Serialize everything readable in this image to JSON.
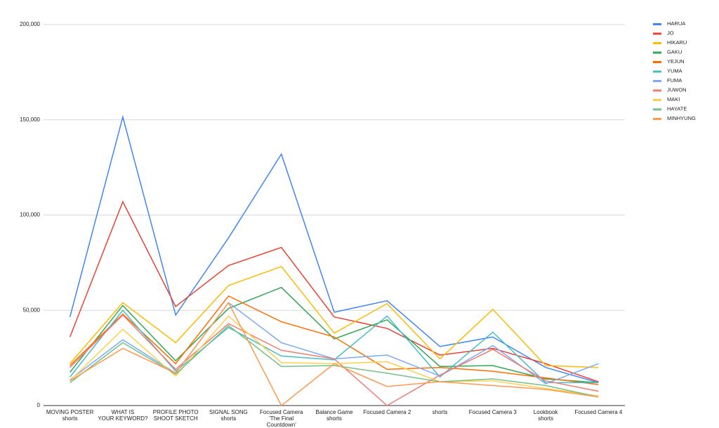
{
  "chart_data": {
    "type": "line",
    "categories": [
      [
        "MOVING POSTER",
        "shorts"
      ],
      [
        "WHAT IS",
        "YOUR KEYWORD?"
      ],
      [
        "PROFILE PHOTO",
        "SHOOT SKETCH"
      ],
      [
        "SIGNAL SONG",
        "shorts"
      ],
      [
        "Focused Camera",
        "'The Final",
        "Countdown'"
      ],
      [
        "Balance Game",
        "shorts"
      ],
      [
        "Focused Camera 2"
      ],
      [
        "shorts"
      ],
      [
        "Focused Camera 3"
      ],
      [
        "Lookbook",
        "shorts"
      ],
      [
        "Focused Camera 4"
      ]
    ],
    "series": [
      {
        "name": "HARUA",
        "color": "#4285f4",
        "values": [
          46500,
          151500,
          47500,
          88000,
          132000,
          49000,
          55000,
          31000,
          36000,
          20000,
          12000
        ]
      },
      {
        "name": "JO",
        "color": "#ea4335",
        "values": [
          36000,
          107000,
          52000,
          73500,
          83000,
          46500,
          40500,
          26500,
          30000,
          22000,
          12500
        ]
      },
      {
        "name": "HIKARU",
        "color": "#fbbc04",
        "values": [
          22000,
          54000,
          33000,
          63000,
          73000,
          38000,
          53500,
          24500,
          50500,
          21000,
          20000
        ]
      },
      {
        "name": "GAKU",
        "color": "#34a853",
        "values": [
          17500,
          52500,
          23500,
          51000,
          62000,
          35000,
          45000,
          20500,
          21000,
          14000,
          12000
        ]
      },
      {
        "name": "YEJUN",
        "color": "#ff6d01",
        "values": [
          21000,
          48000,
          22000,
          57500,
          44000,
          36000,
          19000,
          20000,
          18000,
          14500,
          11000
        ]
      },
      {
        "name": "YUMA",
        "color": "#46bdc6",
        "values": [
          15000,
          50000,
          18000,
          41000,
          26000,
          24000,
          47000,
          15000,
          38500,
          12000,
          12000
        ]
      },
      {
        "name": "FUMA",
        "color": "#7baaf7",
        "values": [
          13500,
          34500,
          17000,
          54000,
          33000,
          24500,
          26500,
          15500,
          31500,
          11500,
          22000
        ]
      },
      {
        "name": "JUWON",
        "color": "#f07b72",
        "values": [
          20000,
          47500,
          19000,
          43000,
          29000,
          24500,
          0,
          16000,
          29500,
          13000,
          7500
        ]
      },
      {
        "name": "MAKI",
        "color": "#fcd04f",
        "values": [
          13000,
          40000,
          15500,
          47000,
          22500,
          22000,
          23000,
          12500,
          13000,
          9000,
          5000
        ]
      },
      {
        "name": "HAYATE",
        "color": "#71c287",
        "values": [
          12000,
          33000,
          16500,
          42000,
          20500,
          21000,
          17000,
          12500,
          14000,
          10500,
          4500
        ]
      },
      {
        "name": "MINHYUNG",
        "color": "#ff994d",
        "values": [
          13000,
          30000,
          17000,
          54000,
          0,
          22000,
          10000,
          12500,
          10500,
          8500,
          4500
        ]
      }
    ],
    "ylim": [
      0,
      200000
    ],
    "yticks": [
      0,
      {
        "value": 50000,
        "label": "50,000"
      },
      {
        "value": 100000,
        "label": "100,000"
      },
      {
        "value": 150000,
        "label": "150,000"
      },
      {
        "value": 200000,
        "label": "200,000"
      }
    ],
    "grid": true,
    "legend": "right"
  }
}
